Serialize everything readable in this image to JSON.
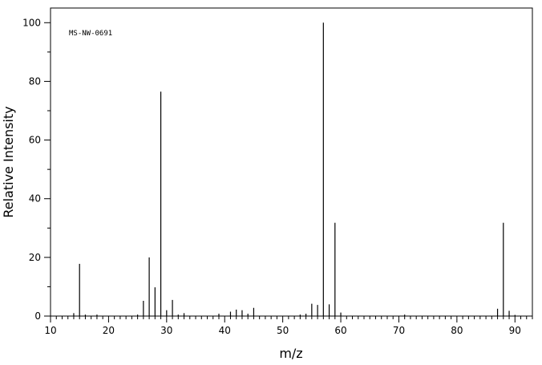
{
  "chart_data": {
    "type": "bar",
    "title": "",
    "xlabel": "m/z",
    "ylabel": "Relative Intensity",
    "annotation": "MS-NW-0691",
    "xlim": [
      10,
      93
    ],
    "ylim": [
      0,
      105
    ],
    "x_ticks": [
      10,
      20,
      30,
      40,
      50,
      60,
      70,
      80,
      90
    ],
    "y_ticks": [
      0,
      20,
      40,
      60,
      80,
      100
    ],
    "grid": false,
    "legend": "none",
    "peaks": [
      {
        "mz": 14,
        "intensity": 1.0
      },
      {
        "mz": 15,
        "intensity": 17.8
      },
      {
        "mz": 16,
        "intensity": 0.5
      },
      {
        "mz": 18,
        "intensity": 0.5
      },
      {
        "mz": 25,
        "intensity": 0.5
      },
      {
        "mz": 26,
        "intensity": 5.2
      },
      {
        "mz": 27,
        "intensity": 20.0
      },
      {
        "mz": 28,
        "intensity": 9.8
      },
      {
        "mz": 29,
        "intensity": 76.5
      },
      {
        "mz": 30,
        "intensity": 2.0
      },
      {
        "mz": 31,
        "intensity": 5.5
      },
      {
        "mz": 32,
        "intensity": 0.5
      },
      {
        "mz": 33,
        "intensity": 1.0
      },
      {
        "mz": 39,
        "intensity": 0.8
      },
      {
        "mz": 41,
        "intensity": 1.5
      },
      {
        "mz": 42,
        "intensity": 2.2
      },
      {
        "mz": 43,
        "intensity": 2.0
      },
      {
        "mz": 44,
        "intensity": 0.8
      },
      {
        "mz": 45,
        "intensity": 2.8
      },
      {
        "mz": 53,
        "intensity": 0.5
      },
      {
        "mz": 54,
        "intensity": 0.8
      },
      {
        "mz": 55,
        "intensity": 4.2
      },
      {
        "mz": 56,
        "intensity": 3.8
      },
      {
        "mz": 57,
        "intensity": 100.0
      },
      {
        "mz": 58,
        "intensity": 4.0
      },
      {
        "mz": 59,
        "intensity": 31.8
      },
      {
        "mz": 60,
        "intensity": 1.2
      },
      {
        "mz": 71,
        "intensity": 0.5
      },
      {
        "mz": 87,
        "intensity": 2.5
      },
      {
        "mz": 88,
        "intensity": 31.8
      },
      {
        "mz": 89,
        "intensity": 1.8
      },
      {
        "mz": 90,
        "intensity": 0.4
      }
    ]
  }
}
